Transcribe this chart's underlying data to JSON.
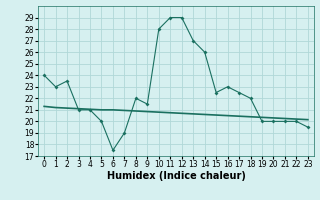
{
  "line1_x": [
    0,
    1,
    2,
    3,
    4,
    5,
    6,
    7,
    8,
    9,
    10,
    11,
    12,
    13,
    14,
    15,
    16,
    17,
    18,
    19,
    20,
    21,
    22,
    23
  ],
  "line1_y": [
    24,
    23,
    23.5,
    21,
    21,
    20,
    17.5,
    19,
    22,
    21.5,
    28,
    29,
    29,
    27,
    26,
    22.5,
    23,
    22.5,
    22,
    20,
    20,
    20,
    20,
    19.5
  ],
  "line2_x": [
    0,
    1,
    2,
    3,
    4,
    5,
    6,
    7,
    8,
    9,
    10,
    11,
    12,
    13,
    14,
    15,
    16,
    17,
    18,
    19,
    20,
    21,
    22,
    23
  ],
  "line2_y": [
    21.3,
    21.2,
    21.15,
    21.1,
    21.05,
    21.0,
    21.0,
    20.95,
    20.9,
    20.85,
    20.8,
    20.75,
    20.7,
    20.65,
    20.6,
    20.55,
    20.5,
    20.45,
    20.4,
    20.35,
    20.3,
    20.25,
    20.2,
    20.15
  ],
  "line_color": "#1a7060",
  "bg_color": "#d6f0f0",
  "grid_color": "#b0d8d8",
  "xlabel": "Humidex (Indice chaleur)",
  "ylim": [
    17,
    30
  ],
  "yticks": [
    17,
    18,
    19,
    20,
    21,
    22,
    23,
    24,
    25,
    26,
    27,
    28,
    29
  ],
  "xlim": [
    -0.5,
    23.5
  ],
  "xticks": [
    0,
    1,
    2,
    3,
    4,
    5,
    6,
    7,
    8,
    9,
    10,
    11,
    12,
    13,
    14,
    15,
    16,
    17,
    18,
    19,
    20,
    21,
    22,
    23
  ],
  "label_fontsize": 7,
  "tick_fontsize": 5.5
}
